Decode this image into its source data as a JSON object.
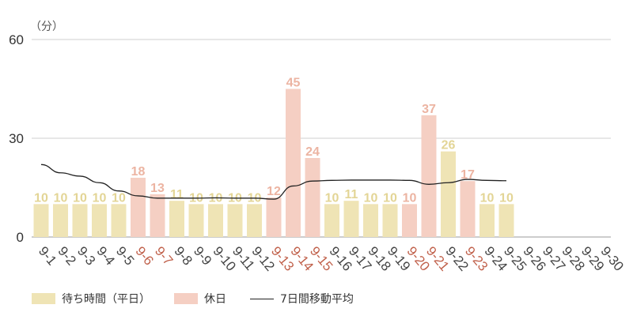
{
  "chart_data": {
    "type": "bar",
    "unit_label": "（分）",
    "ylim": [
      0,
      60
    ],
    "yticks": [
      0,
      30,
      60
    ],
    "grid": true,
    "legend_position": "bottom-left",
    "categories": [
      "9-1",
      "9-2",
      "9-3",
      "9-4",
      "9-5",
      "9-6",
      "9-7",
      "9-8",
      "9-9",
      "9-10",
      "9-11",
      "9-12",
      "9-13",
      "9-14",
      "9-15",
      "9-16",
      "9-17",
      "9-18",
      "9-19",
      "9-20",
      "9-21",
      "9-22",
      "9-23",
      "9-24",
      "9-25",
      "9-26",
      "9-27",
      "9-28",
      "9-29",
      "9-30"
    ],
    "holiday": [
      false,
      false,
      false,
      false,
      false,
      true,
      true,
      false,
      false,
      false,
      false,
      false,
      true,
      true,
      true,
      false,
      false,
      false,
      false,
      true,
      true,
      false,
      true,
      false,
      false,
      false,
      false,
      false,
      false,
      false
    ],
    "values": [
      10,
      10,
      10,
      10,
      10,
      18,
      13,
      11,
      10,
      10,
      10,
      10,
      12,
      45,
      24,
      10,
      11,
      10,
      10,
      10,
      37,
      26,
      17,
      10,
      10,
      null,
      null,
      null,
      null,
      null
    ],
    "moving_average": [
      22,
      19.5,
      18.5,
      16.5,
      14,
      12.5,
      11.8,
      11.8,
      11.8,
      11.9,
      11.8,
      11.8,
      11.5,
      15.5,
      17,
      17.2,
      17.3,
      17.3,
      17.3,
      17.2,
      16,
      16.5,
      17.5,
      17.2,
      17.1,
      null,
      null,
      null,
      null,
      null
    ],
    "series": [
      {
        "name": "待ち時間（平日）",
        "color": "#efe4b5"
      },
      {
        "name": "休日",
        "color": "#f5cfc3"
      },
      {
        "name": "7日間移動平均",
        "color": "#222222"
      }
    ],
    "colors": {
      "weekday_label": "#444444",
      "holiday_label": "#c0604a",
      "weekday_value": "#e3d596",
      "holiday_value": "#ecb4a2",
      "grid": "#cfcfcf"
    }
  }
}
